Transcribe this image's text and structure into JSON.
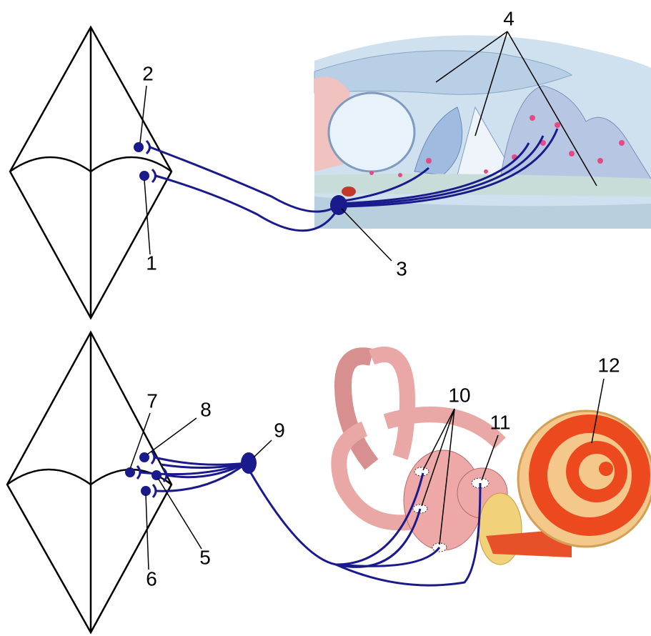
{
  "labels": [
    "1",
    "2",
    "3",
    "4",
    "5",
    "6",
    "7",
    "8",
    "9",
    "10",
    "11",
    "12"
  ]
}
